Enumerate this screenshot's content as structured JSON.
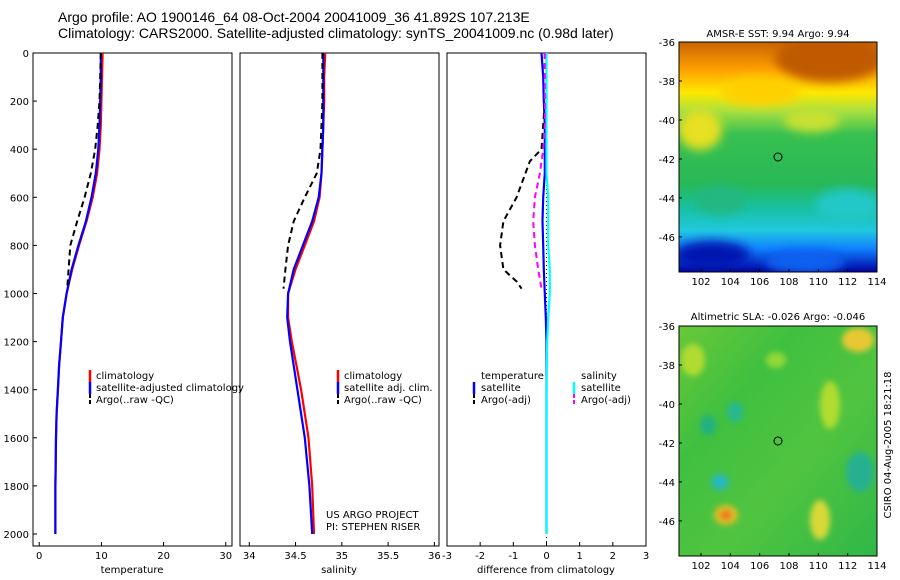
{
  "title_line1": "Argo profile: AO 1900146_64 08-Oct-2004 20041009_36 41.892S 107.213E",
  "title_line2": "Climatology: CARS2000. Satellite-adjusted climatology: synTS_20041009.nc (0.98d later)",
  "colors": {
    "climatology": "#ff0000",
    "satellite": "#0000ff",
    "argo": "#000000",
    "salinity": "#00ffff",
    "argo_adj_salinity": "#ff00ff"
  },
  "chart_data": [
    {
      "type": "line",
      "xlabel": "temperature",
      "xlim": [
        -1,
        31
      ],
      "ylim": [
        2050,
        0
      ],
      "xticks": [
        0,
        10,
        20,
        30
      ],
      "yticks": [
        0,
        200,
        400,
        600,
        800,
        1000,
        1200,
        1400,
        1600,
        1800,
        2000
      ],
      "series": [
        {
          "name": "climatology",
          "color": "#ff0000",
          "x": [
            10.2,
            10.1,
            10.0,
            9.9,
            9.7,
            9.3,
            8.6,
            7.6,
            6.4,
            5.3,
            4.4,
            3.8,
            3.5,
            3.2,
            3.0,
            2.8,
            2.7,
            2.6,
            2.6
          ],
          "y": [
            0,
            100,
            200,
            300,
            400,
            500,
            600,
            700,
            800,
            900,
            1000,
            1100,
            1200,
            1300,
            1400,
            1500,
            1600,
            1800,
            2000
          ]
        },
        {
          "name": "satellite-adjusted climatology",
          "color": "#0000ff",
          "x": [
            9.9,
            9.9,
            9.8,
            9.7,
            9.5,
            9.1,
            8.4,
            7.5,
            6.3,
            5.2,
            4.4,
            3.8,
            3.5,
            3.2,
            3.0,
            2.8,
            2.7,
            2.6,
            2.6
          ],
          "y": [
            0,
            100,
            200,
            300,
            400,
            500,
            600,
            700,
            800,
            900,
            1000,
            1100,
            1200,
            1300,
            1400,
            1500,
            1600,
            1800,
            2000
          ]
        },
        {
          "name": "Argo(..raw -QC)",
          "color": "#000000",
          "dashed": true,
          "x": [
            9.9,
            9.8,
            9.7,
            9.4,
            9.0,
            8.3,
            7.3,
            6.1,
            5.0,
            4.5
          ],
          "y": [
            0,
            100,
            200,
            300,
            400,
            500,
            600,
            700,
            800,
            980
          ]
        }
      ]
    },
    {
      "type": "line",
      "xlabel": "salinity",
      "xlim": [
        33.9,
        36.05
      ],
      "ylim": [
        2050,
        0
      ],
      "xticks": [
        34,
        34.5,
        35,
        35.5,
        36
      ],
      "series": [
        {
          "name": "climatology",
          "color": "#ff0000",
          "x": [
            34.82,
            34.81,
            34.81,
            34.8,
            34.79,
            34.78,
            34.76,
            34.7,
            34.6,
            34.5,
            34.42,
            34.42,
            34.46,
            34.51,
            34.56,
            34.6,
            34.64,
            34.68,
            34.7
          ],
          "y": [
            0,
            100,
            200,
            300,
            400,
            500,
            600,
            700,
            800,
            900,
            1000,
            1100,
            1200,
            1300,
            1400,
            1500,
            1600,
            1800,
            2000
          ]
        },
        {
          "name": "satellite adj. clim.",
          "color": "#0000ff",
          "x": [
            34.8,
            34.8,
            34.8,
            34.8,
            34.79,
            34.78,
            34.75,
            34.68,
            34.58,
            34.48,
            34.42,
            34.41,
            34.44,
            34.48,
            34.52,
            34.56,
            34.6,
            34.65,
            34.68
          ],
          "y": [
            0,
            100,
            200,
            300,
            400,
            500,
            600,
            700,
            800,
            900,
            1000,
            1100,
            1200,
            1300,
            1400,
            1500,
            1600,
            1800,
            2000
          ]
        },
        {
          "name": "Argo(..raw -QC)",
          "color": "#000000",
          "dashed": true,
          "x": [
            34.79,
            34.79,
            34.79,
            34.78,
            34.77,
            34.73,
            34.6,
            34.48,
            34.42,
            34.39,
            34.37
          ],
          "y": [
            0,
            100,
            200,
            300,
            400,
            500,
            600,
            700,
            800,
            900,
            980
          ]
        }
      ],
      "annotations": [
        "US ARGO PROJECT",
        "PI: STEPHEN RISER"
      ]
    },
    {
      "type": "line",
      "xlabel": "difference from climatology",
      "xlim": [
        -3,
        3
      ],
      "ylim": [
        2050,
        0
      ],
      "xticks": [
        -3,
        -2,
        -1,
        0,
        1,
        2,
        3
      ],
      "series": [
        {
          "name": "temperature satellite",
          "color": "#0000ff",
          "x": [
            -0.15,
            -0.1,
            -0.08,
            -0.05,
            -0.05,
            -0.05,
            -0.1,
            -0.12,
            -0.1,
            -0.08,
            -0.05,
            -0.02,
            0.0,
            0.0,
            0.0,
            0.0,
            0.0
          ],
          "y": [
            0,
            100,
            200,
            300,
            400,
            500,
            600,
            700,
            800,
            900,
            1000,
            1100,
            1200,
            1400,
            1600,
            1800,
            2000
          ]
        },
        {
          "name": "temperature Argo(-adj)",
          "color": "#000000",
          "dashed": true,
          "x": [
            -0.05,
            -0.05,
            -0.05,
            -0.1,
            -0.15,
            -0.5,
            -0.9,
            -1.3,
            -1.4,
            -1.3,
            -0.9,
            -0.75
          ],
          "y": [
            0,
            100,
            200,
            300,
            400,
            450,
            600,
            700,
            800,
            900,
            950,
            980
          ]
        },
        {
          "name": "salinity satellite",
          "color": "#00ffff",
          "x": [
            0.0,
            0.0,
            0.0,
            0.0,
            0.0,
            0.0,
            0.05,
            0.05,
            0.05,
            0.1,
            0.1,
            0.05,
            0.02,
            0.0,
            0.0,
            0.0,
            0.0
          ],
          "y": [
            0,
            100,
            200,
            300,
            400,
            500,
            600,
            700,
            800,
            900,
            1000,
            1100,
            1200,
            1400,
            1600,
            1800,
            2000
          ]
        },
        {
          "name": "salinity Argo(-adj)",
          "color": "#ff00ff",
          "dashed": true,
          "x": [
            -0.05,
            -0.05,
            -0.05,
            -0.05,
            -0.1,
            -0.2,
            -0.35,
            -0.4,
            -0.35,
            -0.25,
            -0.15
          ],
          "y": [
            0,
            100,
            200,
            300,
            400,
            500,
            600,
            700,
            800,
            900,
            980
          ]
        }
      ],
      "legend_left": [
        "temperature",
        "satellite",
        "Argo(-adj)"
      ],
      "legend_right": [
        "salinity",
        "satellite",
        "Argo(-adj)"
      ]
    },
    {
      "type": "heatmap",
      "title": "AMSR-E SST: 9.94 Argo: 9.94",
      "xlim": [
        100.5,
        114
      ],
      "ylim": [
        -47.8,
        -36
      ],
      "xticks": [
        102,
        104,
        106,
        108,
        110,
        112,
        114
      ],
      "yticks": [
        -36,
        -38,
        -40,
        -42,
        -44,
        -46
      ],
      "marker": {
        "lon": 107.2,
        "lat": -41.9
      }
    },
    {
      "type": "heatmap",
      "title": "Altimetric SLA: -0.026 Argo: -0.046",
      "xlim": [
        100.5,
        114
      ],
      "ylim": [
        -47.8,
        -36
      ],
      "xticks": [
        102,
        104,
        106,
        108,
        110,
        112,
        114
      ],
      "yticks": [
        -36,
        -38,
        -40,
        -42,
        -44,
        -46
      ],
      "marker": {
        "lon": 107.2,
        "lat": -41.9
      }
    }
  ],
  "footer_text": "CSIRO 04-Aug-2005 18:21:18"
}
